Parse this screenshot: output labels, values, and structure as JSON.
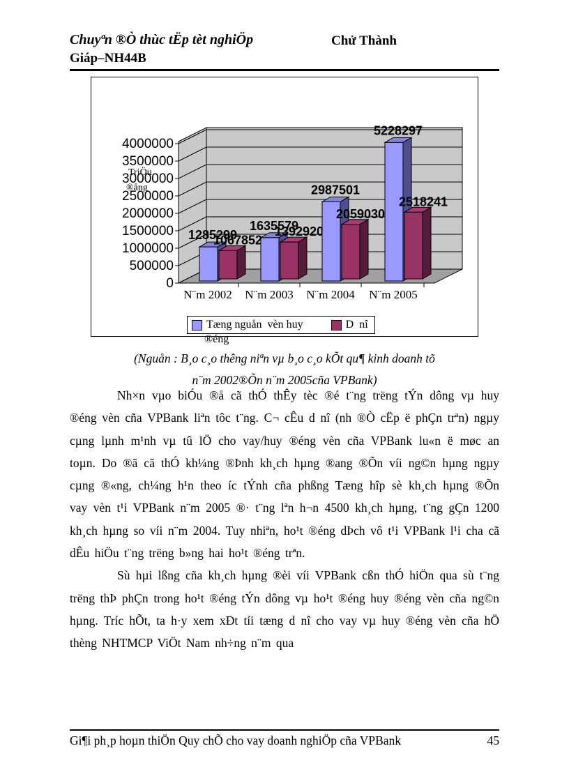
{
  "header": {
    "title": "Chuyªn ®Ò thùc tËp tèt nghiÖp",
    "name_line1": "Chử Thành",
    "name_line2": "Giáp–NH44B"
  },
  "chart_data": {
    "type": "bar",
    "style": "3d-clustered",
    "title": "",
    "ylabel_lines": [
      "TriÖu",
      "®ång"
    ],
    "categories": [
      "N¨m 2002",
      "N¨m 2003",
      "N¨m 2004",
      "N¨m 2005"
    ],
    "series": [
      {
        "name": "Tæng nguån  vèn huy ®éng",
        "color": "#9999FF",
        "side_color": "#4F4F8F",
        "top_color": "#8383DD",
        "values": [
          1285299,
          1635579,
          2987501,
          5228297
        ],
        "labels": [
          "1285299",
          "1635579",
          "2987501",
          "5228297"
        ]
      },
      {
        "name": "D  nî",
        "color": "#993366",
        "side_color": "#561C3A",
        "top_color": "#AC3A74",
        "values": [
          1067852,
          1392920,
          2059030,
          2518241
        ],
        "labels": [
          "1067852",
          "1392920",
          "2059030",
          "2518241"
        ]
      }
    ],
    "ylim": [
      0,
      4000000
    ],
    "ytick_step": 500000,
    "yticks": [
      "0",
      "500000",
      "1000000",
      "1500000",
      "2000000",
      "2500000",
      "3000000",
      "3500000",
      "4000000"
    ],
    "grid": true,
    "legend_position": "bottom",
    "legend": {
      "item1_line1": "Tæng nguån  vèn huy",
      "item1_overflow": "®éng",
      "item2": "D  nî"
    },
    "wall_color": "#C9C9C9",
    "floor_color": "#A0A0A0"
  },
  "caption": {
    "line1": "(Nguån : B¸o c¸o thêng  niªn vµ b¸o c¸o kÕt qu¶ kinh doanh tõ",
    "line2": "n¨m 2002®Õn n¨m 2005cña VPBank)"
  },
  "paragraphs": [
    "Nh×n vµo biÓu ®å cã thÓ thÊy tèc ®é t¨ng trëng  tÝn  dông vµ huy ®éng vèn cña VPBank liªn tôc t¨ng. C¬ cÊu d  nî (nh  ®Ò cËp ë phÇn trªn) ngµy cµng lµnh m¹nh vµ tû lÖ cho vay/huy ®éng vèn cña VPBank lu«n ë møc an toµn. Do ®ã cã thÓ kh¼ng ®Þnh kh¸ch hµng ®ang ®Õn víi ng©n hµng ngµy cµng ®«ng, ch¼ng h¹n theo íc  tÝnh cña phßng Tæng hîp sè kh¸ch hµng ®Õn vay vèn t¹i VPBank n¨m 2005 ®· t¨ng lªn h¬n 4500 kh¸ch hµng, t¨ng gÇn 1200 kh¸ch hµng so víi n¨m 2004. Tuy nhiªn, ho¹t ®éng dÞch vô t¹i VPBank l¹i cha  cã dÊu hiÖu t¨ng trëng  b»ng hai ho¹t ®éng trªn.",
    "Sù hµi lßng  cña kh¸ch hµng ®èi víi VPBank cßn thÓ hiÖn  qua sù t¨ng trëng  thÞ phÇn trong ho¹t ®éng tÝn dông vµ ho¹t ®éng huy ®éng vèn cña ng©n hµng. Tríc  hÕt, ta h·y xem xÐt tíi tæng d  nî cho vay vµ huy ®éng vèn cña hÖ thèng NHTMCP ViÖt Nam nh÷ng n¨m qua"
  ],
  "footer": {
    "text": "Gi¶i ph¸p hoµn thiÖn Quy chÕ cho vay doanh nghiÖp  cña VPBank",
    "page_number": "45"
  }
}
